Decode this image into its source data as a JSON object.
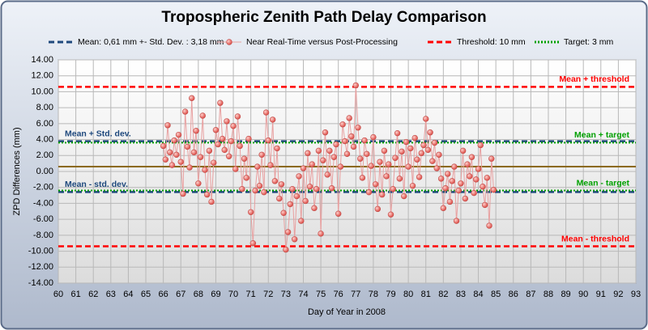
{
  "chart_data": {
    "type": "scatter",
    "title": "Tropospheric Zenith Path Delay Comparison",
    "x_label": "Day of Year in 2008",
    "y_label": "ZPD Differences (mm)",
    "xlim": [
      60,
      93
    ],
    "xticks": [
      60,
      61,
      62,
      63,
      64,
      65,
      66,
      67,
      68,
      69,
      70,
      71,
      72,
      73,
      74,
      75,
      76,
      77,
      78,
      79,
      80,
      81,
      82,
      83,
      84,
      85,
      86,
      87,
      88,
      89,
      90,
      91,
      92,
      93
    ],
    "ylim": [
      -14,
      14
    ],
    "yticks": [
      {
        "value": 14,
        "label": "14.00"
      },
      {
        "value": 12,
        "label": "12.00"
      },
      {
        "value": 10,
        "label": "10.00"
      },
      {
        "value": 8,
        "label": "8.00"
      },
      {
        "value": 6,
        "label": "6.00"
      },
      {
        "value": 4,
        "label": "4.00"
      },
      {
        "value": 2,
        "label": "2.00"
      },
      {
        "value": 0,
        "label": "0.00"
      },
      {
        "value": -2,
        "label": "-2.00"
      },
      {
        "value": -4,
        "label": "-4.00"
      },
      {
        "value": -6,
        "label": "-6.00"
      },
      {
        "value": -8,
        "label": "-8.00"
      },
      {
        "value": -10,
        "label": "-10.00"
      },
      {
        "value": -12,
        "label": "-12.00"
      },
      {
        "value": -14,
        "label": "-14.00"
      }
    ],
    "grid": true,
    "mean": 0.61,
    "mean_color": "#8b6914",
    "series": [
      {
        "name": "Mean: 0,61 mm +- Std. Dev. : 3,18 mm",
        "type": "hline",
        "color": "#1f497d",
        "dash": "dashed",
        "values": [
          3.79,
          -2.57
        ],
        "labels": [
          "Mean + Std. dev.",
          "Mean - std. dev."
        ],
        "label_side": "left"
      },
      {
        "name": "Near Real-Time versus Post-Processing",
        "type": "scatter",
        "color": "#c0504d",
        "x": [
          66,
          66.125,
          66.25,
          66.375,
          66.5,
          66.625,
          66.75,
          66.875,
          67,
          67.125,
          67.25,
          67.375,
          67.5,
          67.625,
          67.75,
          67.875,
          68,
          68.125,
          68.25,
          68.375,
          68.5,
          68.625,
          68.75,
          68.875,
          69,
          69.125,
          69.25,
          69.375,
          69.5,
          69.625,
          69.75,
          69.875,
          70,
          70.125,
          70.25,
          70.375,
          70.5,
          70.625,
          70.75,
          70.875,
          71,
          71.125,
          71.25,
          71.375,
          71.5,
          71.625,
          71.75,
          71.875,
          72,
          72.125,
          72.25,
          72.375,
          72.5,
          72.625,
          72.75,
          72.875,
          73,
          73.125,
          73.25,
          73.375,
          73.5,
          73.625,
          73.75,
          73.875,
          74,
          74.125,
          74.25,
          74.375,
          74.5,
          74.625,
          74.75,
          74.875,
          75,
          75.125,
          75.25,
          75.375,
          75.5,
          75.625,
          75.75,
          75.875,
          76,
          76.125,
          76.25,
          76.375,
          76.5,
          76.625,
          76.75,
          76.875,
          77,
          77.125,
          77.25,
          77.375,
          77.5,
          77.625,
          77.75,
          77.875,
          78,
          78.125,
          78.25,
          78.375,
          78.5,
          78.625,
          78.75,
          78.875,
          79,
          79.125,
          79.25,
          79.375,
          79.5,
          79.625,
          79.75,
          79.875,
          80,
          80.125,
          80.25,
          80.375,
          80.5,
          80.625,
          80.75,
          80.875,
          81,
          81.125,
          81.25,
          81.375,
          81.5,
          81.625,
          81.75,
          81.875,
          82,
          82.125,
          82.25,
          82.375,
          82.5,
          82.625,
          82.75,
          82.875,
          83,
          83.125,
          83.25,
          83.375,
          83.5,
          83.625,
          83.75,
          83.875,
          84,
          84.125,
          84.25,
          84.375,
          84.5,
          84.625,
          84.75,
          84.875
        ],
        "values": [
          3.2,
          1.5,
          5.8,
          2.4,
          0.8,
          3.9,
          2.1,
          4.6,
          1.2,
          -2.8,
          7.5,
          3.1,
          0.5,
          9.2,
          2.4,
          5.1,
          -1.5,
          1.8,
          7.0,
          0.2,
          -2.9,
          2.6,
          -3.8,
          1.1,
          5.2,
          3.4,
          8.6,
          4.1,
          2.7,
          6.3,
          1.9,
          3.8,
          5.7,
          0.3,
          6.9,
          3.2,
          -2.2,
          1.6,
          -0.8,
          4.1,
          -5.1,
          -9.0,
          -2.4,
          0.6,
          -1.8,
          2.1,
          -2.6,
          7.4,
          3.9,
          0.8,
          6.5,
          -1.2,
          2.9,
          -3.4,
          -1.6,
          -5.2,
          -9.8,
          -7.6,
          -4.1,
          -2.2,
          -8.5,
          -3.1,
          -0.6,
          -6.2,
          0.4,
          -3.7,
          2.3,
          -1.9,
          0.9,
          -4.6,
          -2.2,
          2.6,
          -7.8,
          1.4,
          4.9,
          -0.4,
          2.6,
          -2.1,
          1.8,
          3.4,
          -5.3,
          0.6,
          5.9,
          3.8,
          2.2,
          6.7,
          4.4,
          3.1,
          10.8,
          5.5,
          1.6,
          -0.8,
          3.9,
          2.2,
          -2.6,
          0.7,
          4.3,
          -1.6,
          -4.7,
          1.2,
          -2.9,
          2.6,
          -0.6,
          0.9,
          -5.4,
          -2.2,
          1.7,
          4.8,
          -0.9,
          2.5,
          -3.1,
          3.7,
          0.6,
          2.9,
          -1.8,
          4.2,
          1.5,
          -0.7,
          2.3,
          3.3,
          6.6,
          2.7,
          4.9,
          1.3,
          3.6,
          0.4,
          2.1,
          -0.9,
          -4.6,
          -2.1,
          -0.3,
          -3.8,
          -1.2,
          0.6,
          -6.2,
          -2.4,
          -1.5,
          2.6,
          -3.4,
          0.9,
          -0.6,
          1.8,
          -2.7,
          -1.0,
          0.3,
          3.3,
          -1.9,
          -4.2,
          -0.8,
          -6.8,
          1.6,
          -2.3
        ]
      },
      {
        "name": "Threshold: 10 mm",
        "type": "hline",
        "color": "#ff0000",
        "dash": "dashed",
        "values": [
          10.61,
          -9.39
        ],
        "labels": [
          "Mean + threshold",
          "Mean - threshold"
        ],
        "label_side": "right"
      },
      {
        "name": "Target: 3 mm",
        "type": "hline",
        "color": "#00a000",
        "dash": "dotted",
        "values": [
          3.61,
          -2.39
        ],
        "labels": [
          "Mean + target",
          "Mean - target"
        ],
        "label_side": "right"
      }
    ]
  }
}
